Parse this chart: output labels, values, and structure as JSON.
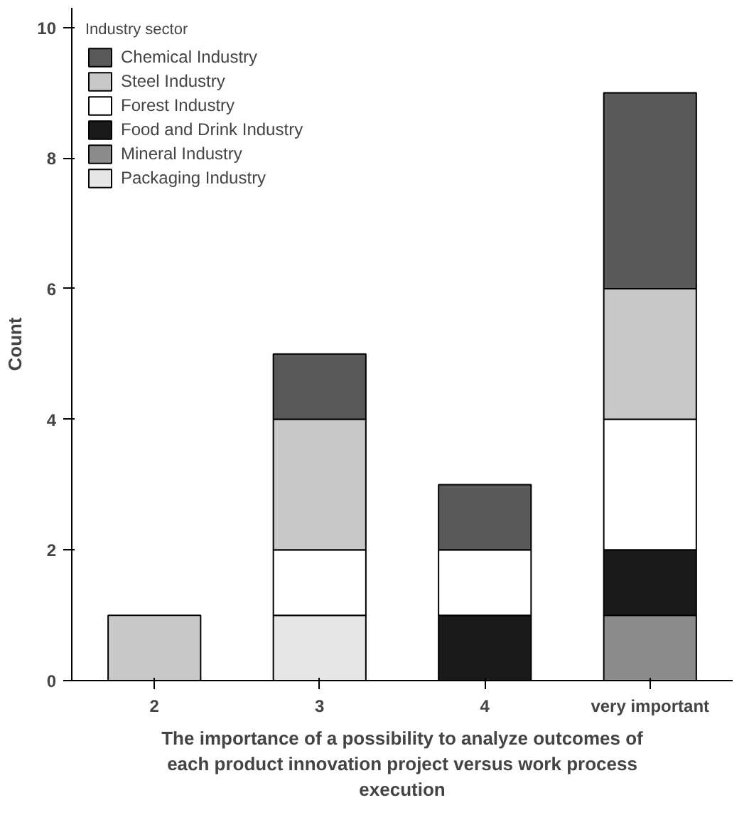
{
  "chart_data": {
    "type": "bar",
    "stacked": true,
    "xlabel": "The importance of a possibility to analyze outcomes of each product innovation project versus work process execution",
    "ylabel": "Count",
    "legend_title": "Industry sector",
    "legend": "top left",
    "grid": false,
    "categories": [
      "2",
      "3",
      "4",
      "very important"
    ],
    "ylim": [
      0,
      10.3
    ],
    "yticks": [
      0,
      2,
      4,
      6,
      8,
      10
    ],
    "series": [
      {
        "name": "Packaging Industry",
        "color": "#e6e6e6",
        "values": [
          null,
          1,
          null,
          null
        ]
      },
      {
        "name": "Mineral Industry",
        "color": "#8c8c8c",
        "values": [
          null,
          null,
          null,
          1
        ]
      },
      {
        "name": "Food and Drink Industry",
        "color": "#1a1a1a",
        "values": [
          null,
          null,
          1,
          1
        ]
      },
      {
        "name": "Forest Industry",
        "color": "#ffffff",
        "values": [
          null,
          1,
          1,
          2
        ]
      },
      {
        "name": "Steel Industry",
        "color": "#c8c8c8",
        "values": [
          1,
          2,
          null,
          2
        ]
      },
      {
        "name": "Chemical Industry",
        "color": "#595959",
        "values": [
          null,
          1,
          1,
          3
        ]
      }
    ]
  }
}
